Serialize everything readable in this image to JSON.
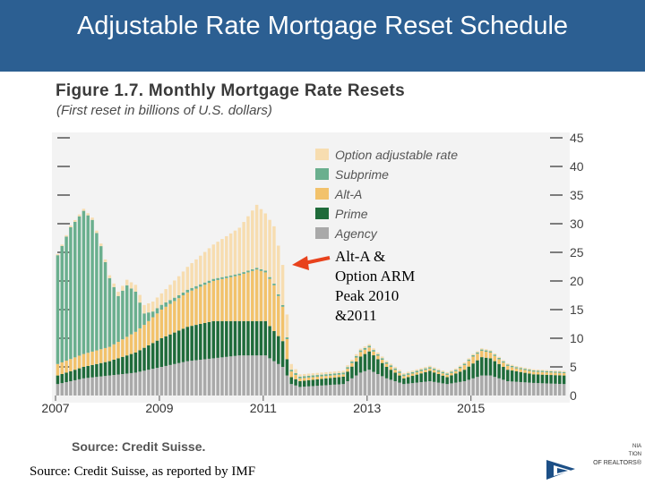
{
  "slide": {
    "title": "Adjustable Rate Mortgage Reset Schedule",
    "source": "Source: Credit Suisse, as reported by IMF"
  },
  "figure": {
    "title": "Figure 1.7. Monthly Mortgage Rate Resets",
    "subtitle": "(First reset in billions of U.S. dollars)",
    "source": "Source: Credit Suisse."
  },
  "annotation": {
    "lines": [
      "Alt-A &",
      "Option ARM",
      "Peak 2010",
      "&2011"
    ]
  },
  "logo": {
    "lines": [
      "NIA",
      "TION",
      "OF REALTORS®"
    ]
  },
  "colors": {
    "title_bar": "#2c5f92",
    "agency": "#a9a9a9",
    "prime": "#1f6b3a",
    "alt_a": "#f2c26b",
    "subprime": "#6aaf8e",
    "option_arm": "#f7ddb0",
    "arrow": "#e8421c"
  },
  "chart_data": {
    "type": "bar",
    "stacked": true,
    "title": "Figure 1.7. Monthly Mortgage Rate Resets",
    "subtitle": "(First reset in billions of U.S. dollars)",
    "ylim": [
      0,
      45
    ],
    "yticks": [
      "0",
      "5",
      "10",
      "15",
      "20",
      "25",
      "30",
      "35",
      "40",
      "45"
    ],
    "xticks": [
      {
        "label": "2007",
        "index": 0
      },
      {
        "label": "2009",
        "index": 24
      },
      {
        "label": "2011",
        "index": 48
      },
      {
        "label": "2013",
        "index": 72
      },
      {
        "label": "2015",
        "index": 96
      }
    ],
    "months": 118,
    "legend_position": "top-right",
    "series": [
      {
        "name": "Option adjustable rate",
        "key": "option_arm",
        "knots": [
          [
            0,
            0.2
          ],
          [
            12,
            0.5
          ],
          [
            18,
            1.2
          ],
          [
            24,
            2
          ],
          [
            30,
            4
          ],
          [
            36,
            6
          ],
          [
            42,
            8
          ],
          [
            46,
            11
          ],
          [
            48,
            10
          ],
          [
            50,
            10
          ],
          [
            52,
            7
          ],
          [
            54,
            1
          ],
          [
            56,
            0.4
          ],
          [
            70,
            0.3
          ],
          [
            100,
            0.2
          ],
          [
            117,
            0.2
          ]
        ]
      },
      {
        "name": "Subprime",
        "key": "subprime",
        "knots": [
          [
            0,
            19
          ],
          [
            3,
            23
          ],
          [
            6,
            25
          ],
          [
            8,
            23
          ],
          [
            10,
            18
          ],
          [
            12,
            12
          ],
          [
            14,
            8
          ],
          [
            16,
            9
          ],
          [
            18,
            7
          ],
          [
            20,
            2
          ],
          [
            22,
            1
          ],
          [
            28,
            0.5
          ],
          [
            40,
            0.3
          ],
          [
            60,
            0.3
          ],
          [
            117,
            0.2
          ]
        ]
      },
      {
        "name": "Alt-A",
        "key": "alt_a",
        "knots": [
          [
            0,
            2
          ],
          [
            12,
            2.5
          ],
          [
            20,
            4
          ],
          [
            24,
            5
          ],
          [
            30,
            6
          ],
          [
            36,
            7
          ],
          [
            42,
            8
          ],
          [
            46,
            9
          ],
          [
            50,
            8
          ],
          [
            52,
            6
          ],
          [
            54,
            1
          ],
          [
            56,
            0.5
          ],
          [
            66,
            0.4
          ],
          [
            70,
            0.8
          ],
          [
            74,
            0.6
          ],
          [
            80,
            0.4
          ],
          [
            92,
            0.4
          ],
          [
            96,
            1.2
          ],
          [
            100,
            1
          ],
          [
            106,
            0.5
          ],
          [
            117,
            0.4
          ]
        ]
      },
      {
        "name": "Prime",
        "key": "prime",
        "knots": [
          [
            0,
            1.5
          ],
          [
            6,
            2
          ],
          [
            12,
            2.5
          ],
          [
            18,
            3.5
          ],
          [
            24,
            5
          ],
          [
            30,
            6
          ],
          [
            36,
            6.5
          ],
          [
            42,
            6
          ],
          [
            48,
            6
          ],
          [
            52,
            4.5
          ],
          [
            54,
            1.2
          ],
          [
            56,
            1
          ],
          [
            66,
            1.3
          ],
          [
            70,
            2.8
          ],
          [
            72,
            3.2
          ],
          [
            76,
            2
          ],
          [
            80,
            1
          ],
          [
            86,
            1.8
          ],
          [
            90,
            1.2
          ],
          [
            94,
            2
          ],
          [
            98,
            3.2
          ],
          [
            100,
            3
          ],
          [
            104,
            2
          ],
          [
            110,
            1.5
          ],
          [
            117,
            1.5
          ]
        ]
      },
      {
        "name": "Agency",
        "key": "agency",
        "knots": [
          [
            0,
            2
          ],
          [
            6,
            3
          ],
          [
            12,
            3.5
          ],
          [
            18,
            4
          ],
          [
            24,
            5
          ],
          [
            30,
            6
          ],
          [
            36,
            6.5
          ],
          [
            42,
            7
          ],
          [
            48,
            7
          ],
          [
            52,
            5
          ],
          [
            54,
            2
          ],
          [
            56,
            1.5
          ],
          [
            66,
            2
          ],
          [
            70,
            4
          ],
          [
            72,
            4.5
          ],
          [
            76,
            3
          ],
          [
            80,
            2
          ],
          [
            86,
            2.5
          ],
          [
            90,
            2
          ],
          [
            94,
            2.5
          ],
          [
            98,
            3.5
          ],
          [
            100,
            3.5
          ],
          [
            104,
            2.5
          ],
          [
            110,
            2.2
          ],
          [
            117,
            2
          ]
        ]
      }
    ]
  }
}
